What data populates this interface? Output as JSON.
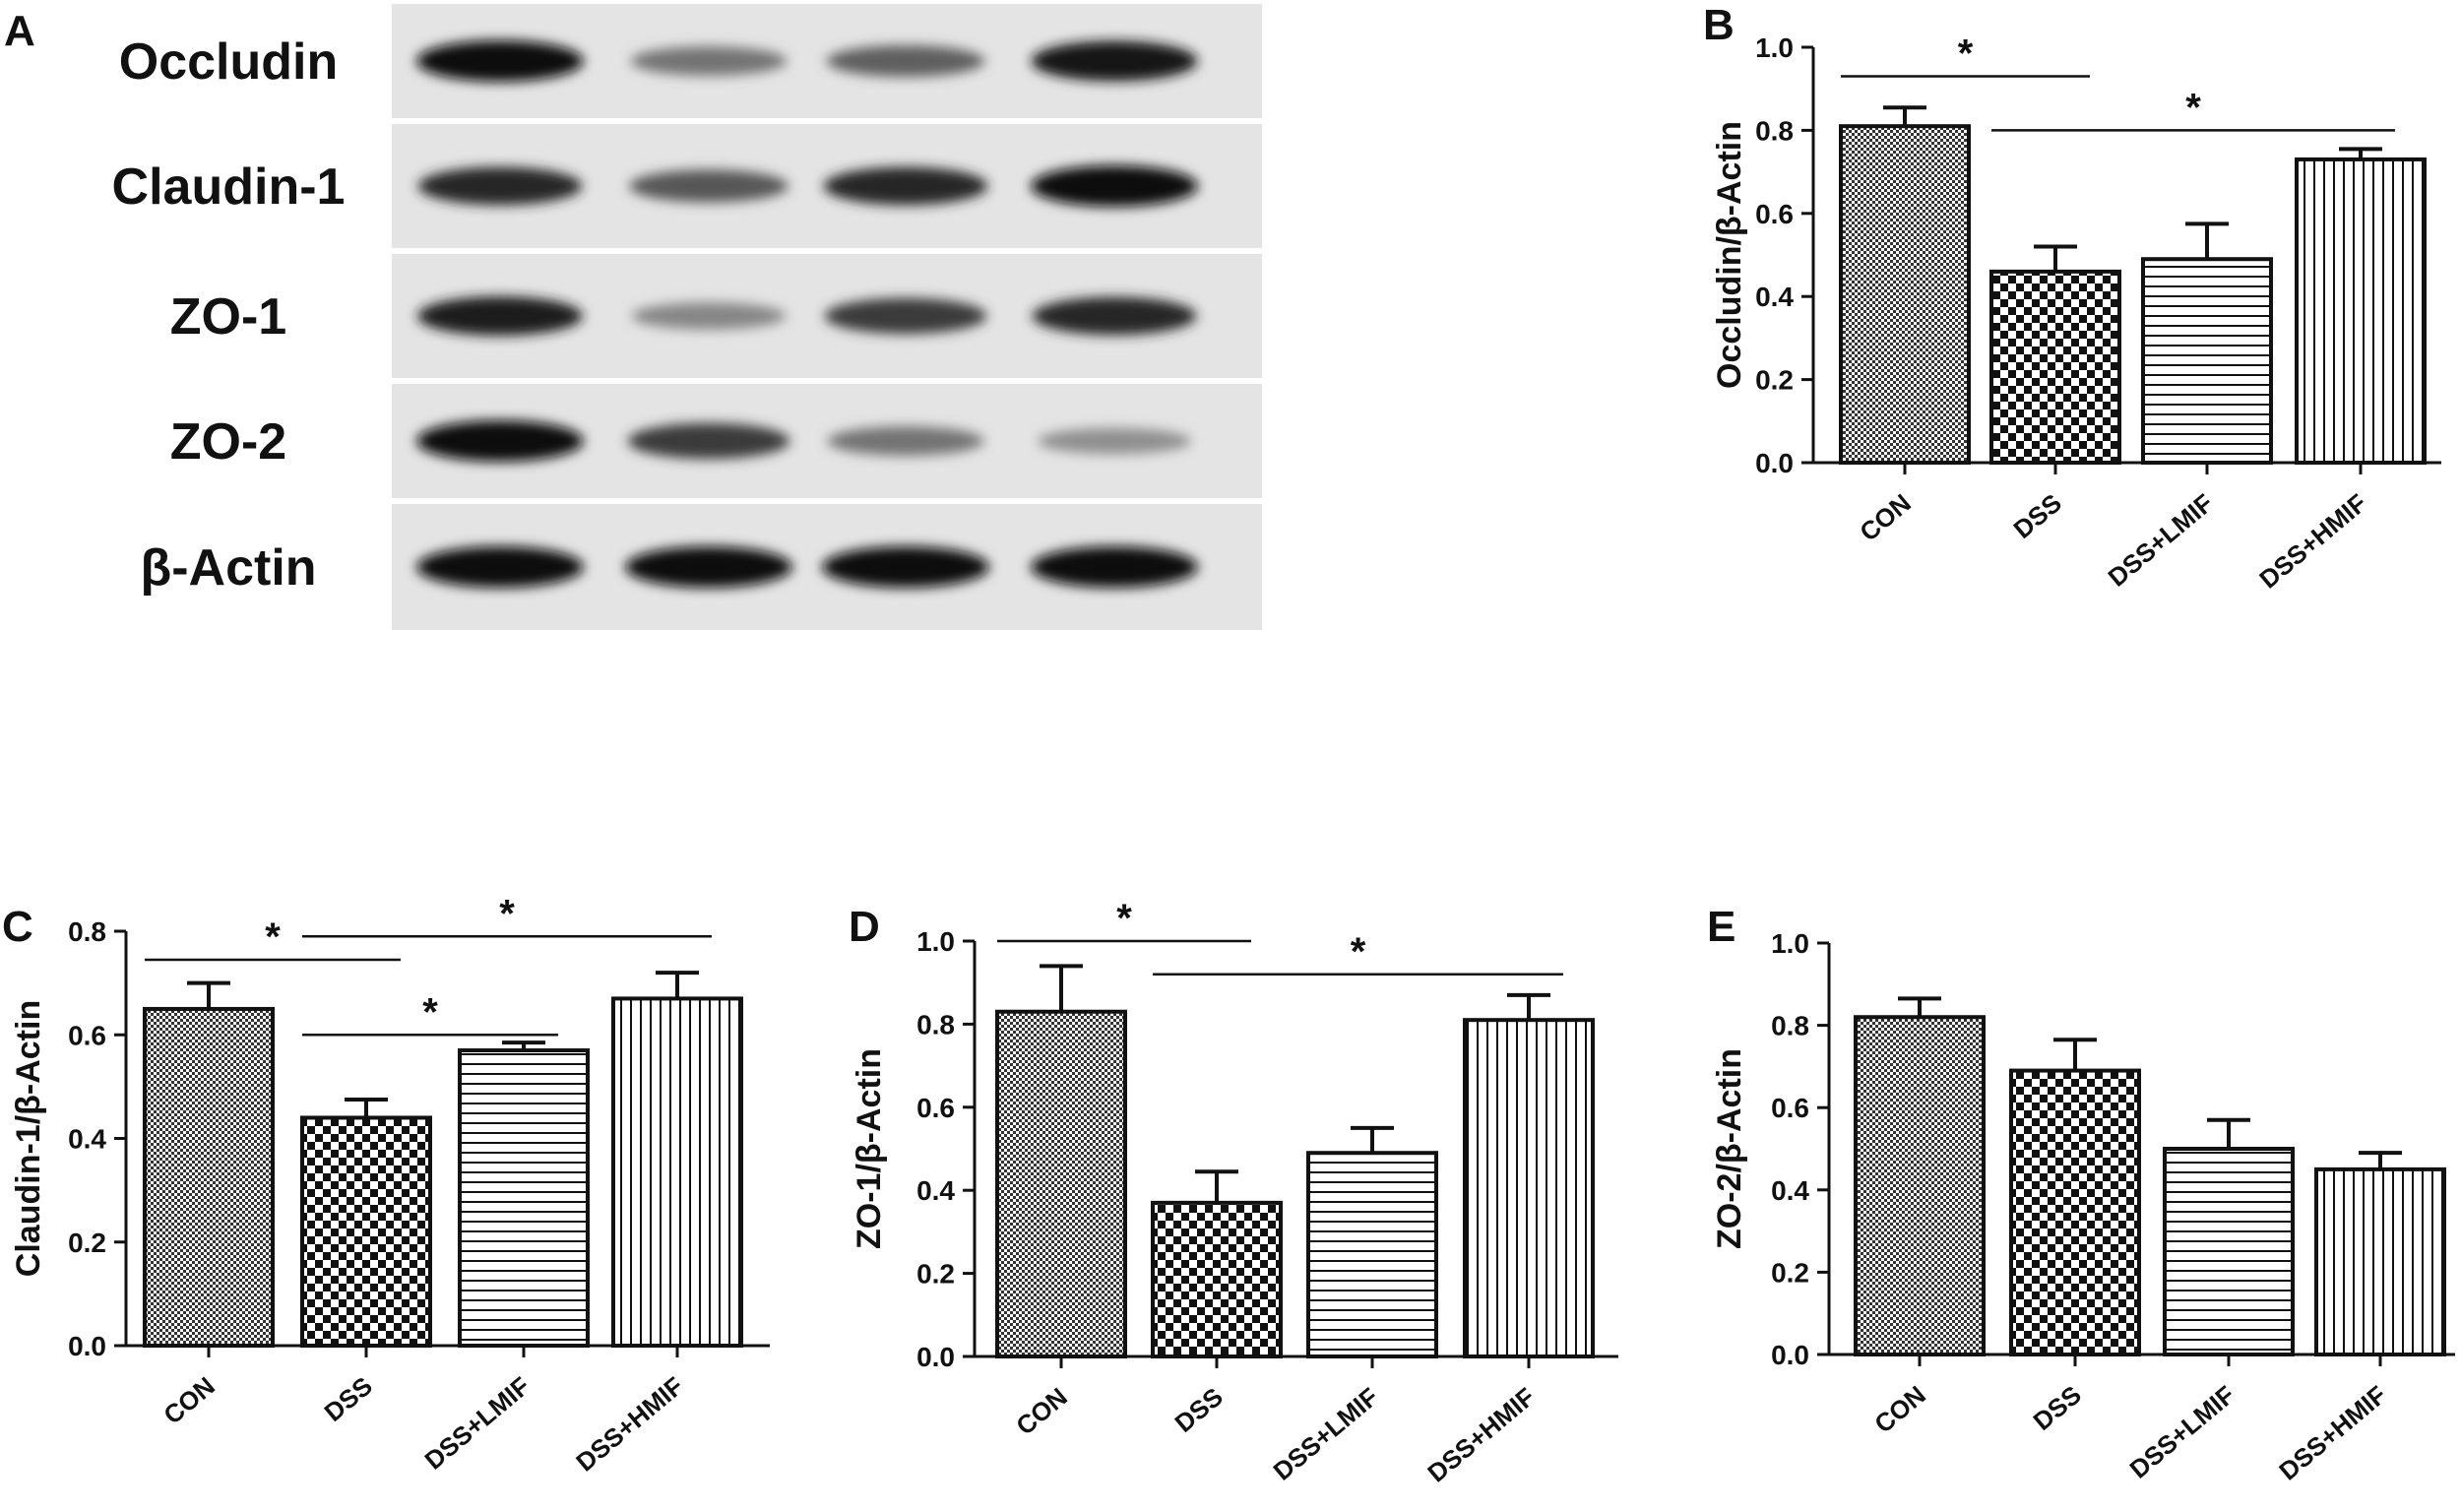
{
  "blot": {
    "panel_label": "A",
    "lanes": 4,
    "rows": [
      {
        "label": "Occludin",
        "intensity": [
          1.0,
          0.45,
          0.55,
          0.95
        ]
      },
      {
        "label": "Claudin-1",
        "intensity": [
          0.85,
          0.6,
          0.85,
          1.0
        ]
      },
      {
        "label": "ZO-1",
        "intensity": [
          0.9,
          0.35,
          0.75,
          0.85
        ]
      },
      {
        "label": "ZO-2",
        "intensity": [
          1.0,
          0.75,
          0.45,
          0.3
        ]
      },
      {
        "label": "β-Actin",
        "intensity": [
          1.0,
          1.0,
          1.0,
          1.0
        ]
      }
    ]
  },
  "chart_data": [
    {
      "panel_label": "B",
      "type": "bar",
      "categories": [
        "CON",
        "DSS",
        "DSS+LMIF",
        "DSS+HMIF"
      ],
      "values": [
        0.81,
        0.46,
        0.49,
        0.73
      ],
      "errors": [
        0.045,
        0.06,
        0.085,
        0.025
      ],
      "ylabel": "Occludin/β-Actin",
      "ylim": [
        0,
        1.0
      ],
      "yticks": [
        "0.0",
        "0.2",
        "0.4",
        "0.6",
        "0.8",
        "1.0"
      ],
      "significance": [
        {
          "from": 0,
          "to": 1,
          "at": 0.93,
          "label": "*"
        },
        {
          "from": 1,
          "to": 3,
          "at": 0.8,
          "label": "*"
        }
      ]
    },
    {
      "panel_label": "C",
      "type": "bar",
      "categories": [
        "CON",
        "DSS",
        "DSS+LMIF",
        "DSS+HMIF"
      ],
      "values": [
        0.65,
        0.44,
        0.57,
        0.67
      ],
      "errors": [
        0.05,
        0.035,
        0.015,
        0.05
      ],
      "ylabel": "Claudin-1/β-Actin",
      "ylim": [
        0,
        0.8
      ],
      "yticks": [
        "0.0",
        "0.2",
        "0.4",
        "0.6",
        "0.8"
      ],
      "significance": [
        {
          "from": 0,
          "to": 1,
          "at": 0.745,
          "label": "*"
        },
        {
          "from": 1,
          "to": 3,
          "at": 0.79,
          "label": "*"
        },
        {
          "from": 1,
          "to": 2,
          "at": 0.6,
          "label": "*"
        }
      ]
    },
    {
      "panel_label": "D",
      "type": "bar",
      "categories": [
        "CON",
        "DSS",
        "DSS+LMIF",
        "DSS+HMIF"
      ],
      "values": [
        0.83,
        0.37,
        0.49,
        0.81
      ],
      "errors": [
        0.11,
        0.075,
        0.06,
        0.06
      ],
      "ylabel": "ZO-1/β-Actin",
      "ylim": [
        0,
        1.0
      ],
      "yticks": [
        "0.0",
        "0.2",
        "0.4",
        "0.6",
        "0.8",
        "1.0"
      ],
      "significance": [
        {
          "from": 0,
          "to": 1,
          "at": 1.0,
          "label": "*"
        },
        {
          "from": 1,
          "to": 3,
          "at": 0.92,
          "label": "*"
        }
      ]
    },
    {
      "panel_label": "E",
      "type": "bar",
      "categories": [
        "CON",
        "DSS",
        "DSS+LMIF",
        "DSS+HMIF"
      ],
      "values": [
        0.82,
        0.69,
        0.5,
        0.45
      ],
      "errors": [
        0.045,
        0.075,
        0.07,
        0.04
      ],
      "ylabel": "ZO-2/β-Actin",
      "ylim": [
        0,
        1.0
      ],
      "yticks": [
        "0.0",
        "0.2",
        "0.4",
        "0.6",
        "0.8",
        "1.0"
      ],
      "significance": []
    }
  ]
}
